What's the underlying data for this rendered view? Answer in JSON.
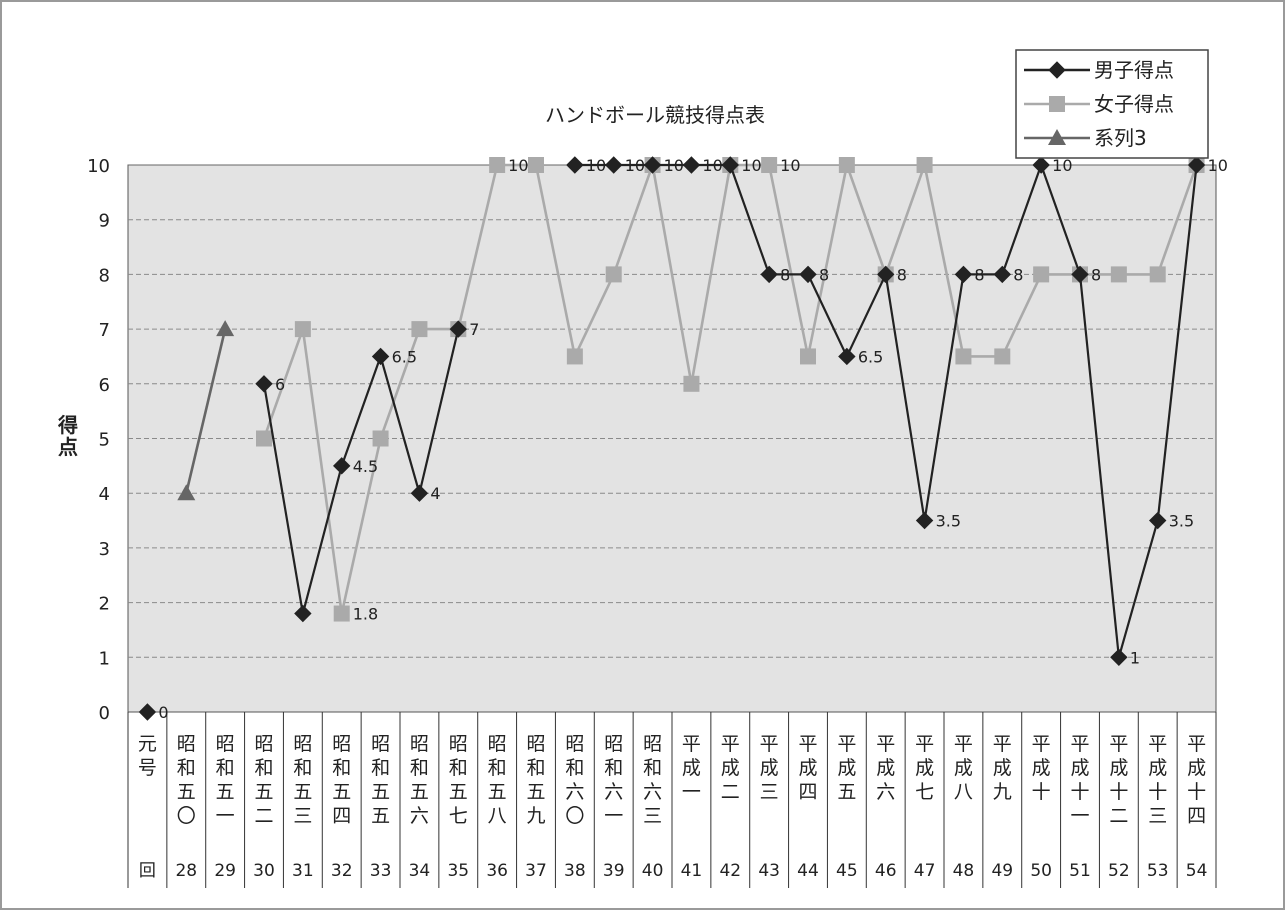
{
  "chart_data": {
    "type": "line",
    "title": "ハンドボール競技得点表",
    "ylabel": "得点",
    "ylim": [
      0,
      10
    ],
    "yticks": [
      0,
      1,
      2,
      3,
      4,
      5,
      6,
      7,
      8,
      9,
      10
    ],
    "grid": "horizontal dashed",
    "legend_position": "top-right",
    "category_row1": [
      "元号",
      "昭和五〇",
      "昭和五一",
      "昭和五二",
      "昭和五三",
      "昭和五四",
      "昭和五五",
      "昭和五六",
      "昭和五七",
      "昭和五八",
      "昭和五九",
      "昭和六〇",
      "昭和六一",
      "昭和六三",
      "平成一",
      "平成二",
      "平成三",
      "平成四",
      "平成五",
      "平成六",
      "平成七",
      "平成八",
      "平成九",
      "平成十",
      "平成十一",
      "平成十二",
      "平成十三",
      "平成十四"
    ],
    "category_row2": [
      "回",
      "28",
      "29",
      "30",
      "31",
      "32",
      "33",
      "34",
      "35",
      "36",
      "37",
      "38",
      "39",
      "40",
      "41",
      "42",
      "43",
      "44",
      "45",
      "46",
      "47",
      "48",
      "49",
      "50",
      "51",
      "52",
      "53",
      "54"
    ],
    "series": [
      {
        "name": "男子得点",
        "color": "#222222",
        "marker": "diamond",
        "values": [
          0,
          null,
          null,
          6,
          1.8,
          4.5,
          6.5,
          4,
          7,
          null,
          null,
          10,
          10,
          10,
          10,
          10,
          8,
          8,
          6.5,
          8,
          3.5,
          8,
          8,
          10,
          8,
          1,
          3.5,
          10
        ],
        "labels": [
          "0",
          null,
          null,
          "6",
          null,
          "4.5",
          "6.5",
          "4",
          "7",
          null,
          null,
          "10",
          "10",
          "10",
          "10",
          "10",
          "8",
          "8",
          "6.5",
          "8",
          "3.5",
          "8",
          "8",
          "10",
          "8",
          "1",
          "3.5",
          "10"
        ]
      },
      {
        "name": "女子得点",
        "color": "#aaaaaa",
        "marker": "square",
        "values": [
          null,
          null,
          null,
          5,
          7,
          1.8,
          5,
          7,
          7,
          10,
          10,
          6.5,
          8,
          10,
          6,
          10,
          10,
          6.5,
          10,
          8,
          10,
          6.5,
          6.5,
          8,
          8,
          8,
          8,
          10
        ],
        "labels": [
          null,
          null,
          null,
          null,
          null,
          "1.8",
          null,
          null,
          null,
          "10",
          null,
          null,
          null,
          null,
          null,
          null,
          "10",
          null,
          null,
          null,
          null,
          null,
          null,
          null,
          null,
          null,
          null,
          null
        ]
      },
      {
        "name": "系列3",
        "color": "#666666",
        "marker": "triangle",
        "values": [
          null,
          4,
          7,
          null,
          null,
          null,
          null,
          null,
          null,
          null,
          null,
          null,
          null,
          null,
          null,
          null,
          null,
          null,
          null,
          null,
          null,
          null,
          null,
          null,
          null,
          null,
          null,
          null
        ],
        "labels": []
      }
    ]
  }
}
